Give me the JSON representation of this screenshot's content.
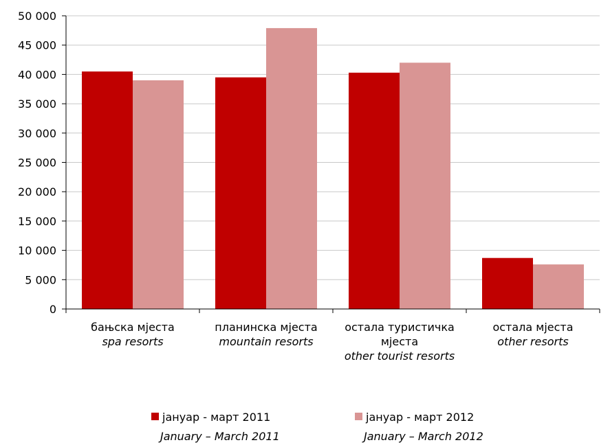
{
  "chart_data": {
    "type": "bar",
    "categories": [
      {
        "local": "бањска мјеста",
        "local2": "",
        "english": "spa resorts"
      },
      {
        "local": "планинска мјеста",
        "local2": "",
        "english": "mountain resorts"
      },
      {
        "local": "остала туристичка",
        "local2": "мјеста",
        "english": "other tourist resorts"
      },
      {
        "local": "остала мјеста",
        "local2": "",
        "english": "other resorts"
      }
    ],
    "series": [
      {
        "name": "јануар - март 2011",
        "name_en": "January – March 2011",
        "color": "#c00000",
        "values": [
          40500,
          39500,
          40300,
          8700
        ]
      },
      {
        "name": "јануар - март 2012",
        "name_en": "January – March 2012",
        "color": "#d99594",
        "values": [
          39000,
          47900,
          42000,
          7600
        ]
      }
    ],
    "ylim": [
      0,
      50000
    ],
    "yticks": [
      0,
      5000,
      10000,
      15000,
      20000,
      25000,
      30000,
      35000,
      40000,
      45000,
      50000
    ],
    "ytick_labels": [
      "0",
      "5 000",
      "10 000",
      "15 000",
      "20 000",
      "25 000",
      "30 000",
      "35 000",
      "40 000",
      "45 000",
      "50 000"
    ],
    "grid": true,
    "legend_position": "bottom"
  }
}
